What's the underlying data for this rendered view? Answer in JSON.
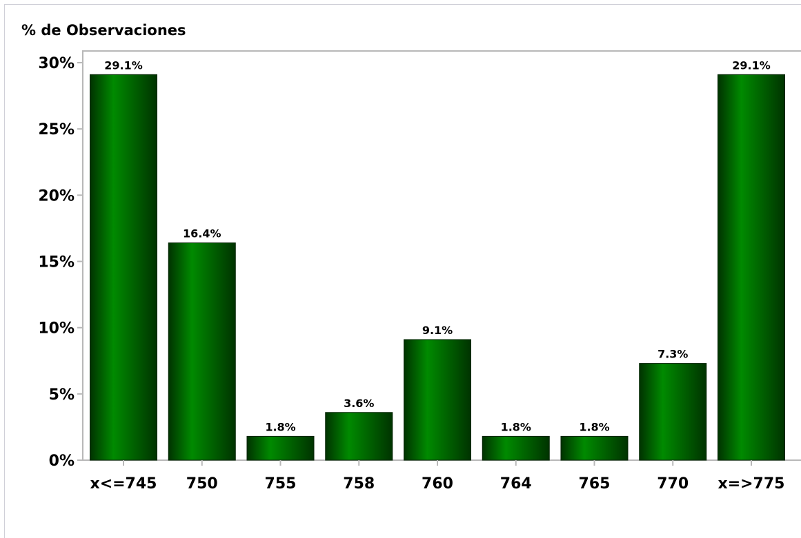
{
  "chart_data": {
    "type": "bar",
    "title": "",
    "xlabel": "",
    "ylabel": "% de Observaciones",
    "categories": [
      "x<=745",
      "750",
      "755",
      "758",
      "760",
      "764",
      "765",
      "770",
      "x=>775"
    ],
    "values": [
      29.1,
      16.4,
      1.8,
      3.6,
      9.1,
      1.8,
      1.8,
      7.3,
      29.1
    ],
    "data_labels": [
      "29.1%",
      "16.4%",
      "1.8%",
      "3.6%",
      "9.1%",
      "1.8%",
      "1.8%",
      "7.3%",
      "29.1%"
    ],
    "ylim": [
      0,
      30
    ],
    "yticks": [
      0,
      5,
      10,
      15,
      20,
      25,
      30
    ],
    "ytick_labels": [
      "0%",
      "5%",
      "10%",
      "15%",
      "20%",
      "25%",
      "30%"
    ],
    "grid": false,
    "legend": "none",
    "bar_color": "#008a00",
    "bar_dark_color": "#003300"
  }
}
